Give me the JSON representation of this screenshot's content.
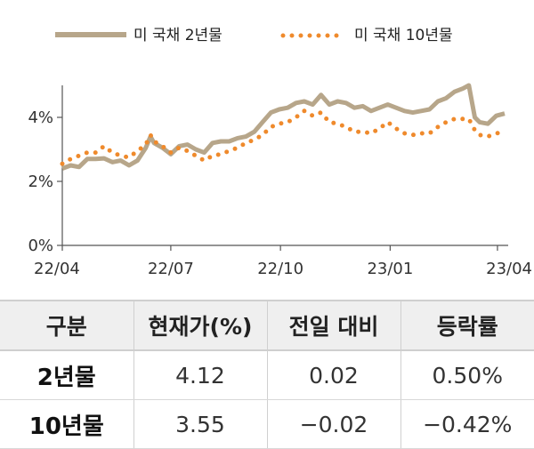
{
  "chart_data": {
    "type": "line",
    "legend_placement": "top",
    "grid": false,
    "x_range": [
      "2022-04-01",
      "2023-04-10"
    ],
    "x_ticks": [
      {
        "date": "2022-04-01",
        "label": "22/04"
      },
      {
        "date": "2022-07-01",
        "label": "22/07"
      },
      {
        "date": "2022-10-01",
        "label": "22/10"
      },
      {
        "date": "2023-01-01",
        "label": "23/01"
      },
      {
        "date": "2023-04-01",
        "label": "23/04"
      }
    ],
    "ylim": [
      0,
      5
    ],
    "y_ticks": [
      {
        "value": 0,
        "label": "0%"
      },
      {
        "value": 2,
        "label": "2%"
      },
      {
        "value": 4,
        "label": "4%"
      }
    ],
    "series": [
      {
        "name": "미 국채 2년물",
        "color": "#b7a68a",
        "style": "solid",
        "points": [
          [
            "2022-04-01",
            2.4
          ],
          [
            "2022-04-08",
            2.5
          ],
          [
            "2022-04-15",
            2.45
          ],
          [
            "2022-04-22",
            2.7
          ],
          [
            "2022-04-29",
            2.7
          ],
          [
            "2022-05-06",
            2.72
          ],
          [
            "2022-05-13",
            2.6
          ],
          [
            "2022-05-20",
            2.65
          ],
          [
            "2022-05-27",
            2.5
          ],
          [
            "2022-06-03",
            2.65
          ],
          [
            "2022-06-10",
            3.05
          ],
          [
            "2022-06-14",
            3.4
          ],
          [
            "2022-06-17",
            3.2
          ],
          [
            "2022-06-24",
            3.05
          ],
          [
            "2022-07-01",
            2.85
          ],
          [
            "2022-07-08",
            3.1
          ],
          [
            "2022-07-15",
            3.15
          ],
          [
            "2022-07-22",
            3.0
          ],
          [
            "2022-07-29",
            2.9
          ],
          [
            "2022-08-05",
            3.2
          ],
          [
            "2022-08-12",
            3.25
          ],
          [
            "2022-08-19",
            3.25
          ],
          [
            "2022-08-26",
            3.35
          ],
          [
            "2022-09-02",
            3.4
          ],
          [
            "2022-09-09",
            3.55
          ],
          [
            "2022-09-16",
            3.85
          ],
          [
            "2022-09-23",
            4.15
          ],
          [
            "2022-09-30",
            4.25
          ],
          [
            "2022-10-07",
            4.3
          ],
          [
            "2022-10-14",
            4.45
          ],
          [
            "2022-10-21",
            4.5
          ],
          [
            "2022-10-28",
            4.4
          ],
          [
            "2022-11-04",
            4.7
          ],
          [
            "2022-11-11",
            4.4
          ],
          [
            "2022-11-18",
            4.5
          ],
          [
            "2022-11-25",
            4.45
          ],
          [
            "2022-12-02",
            4.3
          ],
          [
            "2022-12-09",
            4.35
          ],
          [
            "2022-12-16",
            4.2
          ],
          [
            "2022-12-23",
            4.3
          ],
          [
            "2022-12-30",
            4.4
          ],
          [
            "2023-01-06",
            4.3
          ],
          [
            "2023-01-13",
            4.2
          ],
          [
            "2023-01-20",
            4.15
          ],
          [
            "2023-01-27",
            4.2
          ],
          [
            "2023-02-03",
            4.25
          ],
          [
            "2023-02-10",
            4.5
          ],
          [
            "2023-02-17",
            4.6
          ],
          [
            "2023-02-24",
            4.8
          ],
          [
            "2023-03-03",
            4.9
          ],
          [
            "2023-03-08",
            5.0
          ],
          [
            "2023-03-13",
            4.0
          ],
          [
            "2023-03-17",
            3.85
          ],
          [
            "2023-03-24",
            3.8
          ],
          [
            "2023-03-31",
            4.05
          ],
          [
            "2023-04-07",
            4.12
          ]
        ]
      },
      {
        "name": "미 국채 10년물",
        "color": "#ef8a2c",
        "style": "dotted",
        "points": [
          [
            "2022-04-01",
            2.55
          ],
          [
            "2022-04-08",
            2.7
          ],
          [
            "2022-04-15",
            2.8
          ],
          [
            "2022-04-22",
            2.9
          ],
          [
            "2022-04-29",
            2.9
          ],
          [
            "2022-05-06",
            3.1
          ],
          [
            "2022-05-13",
            2.9
          ],
          [
            "2022-05-20",
            2.8
          ],
          [
            "2022-05-27",
            2.75
          ],
          [
            "2022-06-03",
            2.95
          ],
          [
            "2022-06-10",
            3.15
          ],
          [
            "2022-06-14",
            3.45
          ],
          [
            "2022-06-17",
            3.25
          ],
          [
            "2022-06-24",
            3.1
          ],
          [
            "2022-07-01",
            2.9
          ],
          [
            "2022-07-08",
            3.05
          ],
          [
            "2022-07-15",
            2.95
          ],
          [
            "2022-07-22",
            2.8
          ],
          [
            "2022-07-29",
            2.65
          ],
          [
            "2022-08-05",
            2.8
          ],
          [
            "2022-08-12",
            2.85
          ],
          [
            "2022-08-19",
            2.95
          ],
          [
            "2022-08-26",
            3.05
          ],
          [
            "2022-09-02",
            3.2
          ],
          [
            "2022-09-09",
            3.3
          ],
          [
            "2022-09-16",
            3.45
          ],
          [
            "2022-09-23",
            3.7
          ],
          [
            "2022-09-30",
            3.8
          ],
          [
            "2022-10-07",
            3.85
          ],
          [
            "2022-10-14",
            4.0
          ],
          [
            "2022-10-21",
            4.2
          ],
          [
            "2022-10-28",
            4.05
          ],
          [
            "2022-11-04",
            4.15
          ],
          [
            "2022-11-11",
            3.85
          ],
          [
            "2022-11-18",
            3.8
          ],
          [
            "2022-11-25",
            3.7
          ],
          [
            "2022-12-02",
            3.55
          ],
          [
            "2022-12-09",
            3.55
          ],
          [
            "2022-12-16",
            3.5
          ],
          [
            "2022-12-23",
            3.65
          ],
          [
            "2022-12-30",
            3.85
          ],
          [
            "2023-01-06",
            3.65
          ],
          [
            "2023-01-13",
            3.5
          ],
          [
            "2023-01-20",
            3.45
          ],
          [
            "2023-01-27",
            3.5
          ],
          [
            "2023-02-03",
            3.5
          ],
          [
            "2023-02-10",
            3.7
          ],
          [
            "2023-02-17",
            3.85
          ],
          [
            "2023-02-24",
            3.95
          ],
          [
            "2023-03-03",
            3.95
          ],
          [
            "2023-03-08",
            3.95
          ],
          [
            "2023-03-13",
            3.6
          ],
          [
            "2023-03-17",
            3.45
          ],
          [
            "2023-03-24",
            3.4
          ],
          [
            "2023-03-31",
            3.5
          ],
          [
            "2023-04-07",
            3.55
          ]
        ]
      }
    ]
  },
  "table": {
    "headers": [
      "구분",
      "현재가(%)",
      "전일 대비",
      "등락률"
    ],
    "rows": [
      {
        "name": "2년물",
        "price": "4.12",
        "change": "0.02",
        "pct": "0.50%"
      },
      {
        "name": "10년물",
        "price": "3.55",
        "change": "−0.02",
        "pct": "−0.42%"
      }
    ]
  }
}
